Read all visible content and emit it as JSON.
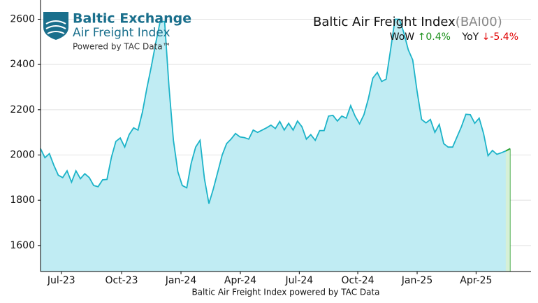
{
  "logo": {
    "brand": "Baltic Exchange",
    "product": "Air Freight Index",
    "powered": "Powered by TAC Data™"
  },
  "chart_data": {
    "type": "area",
    "title": "Baltic Air Freight Index",
    "code": "(BAI00)",
    "wow_label": "WoW",
    "wow_value": "↑0.4%",
    "yoy_label": "YoY",
    "yoy_value": "↓-5.4%",
    "x_label": "Baltic Air Freight Index powered by TAC Data",
    "color": "#1cb3c8",
    "fill": "#c0ecf3",
    "last_segment_color": "#2ca02c",
    "last_fill": "#d6f0d6",
    "grid": true,
    "values": [
      2028,
      1988,
      2006,
      1955,
      1911,
      1900,
      1930,
      1880,
      1930,
      1895,
      1917,
      1900,
      1865,
      1860,
      1890,
      1892,
      1990,
      2060,
      2075,
      2035,
      2090,
      2120,
      2110,
      2190,
      2295,
      2390,
      2495,
      2590,
      2590,
      2300,
      2065,
      1925,
      1865,
      1855,
      1963,
      2035,
      2065,
      1895,
      1785,
      1850,
      1925,
      2000,
      2050,
      2070,
      2095,
      2080,
      2077,
      2070,
      2110,
      2100,
      2110,
      2120,
      2132,
      2117,
      2148,
      2110,
      2140,
      2110,
      2150,
      2125,
      2070,
      2090,
      2065,
      2108,
      2108,
      2172,
      2175,
      2150,
      2172,
      2163,
      2218,
      2172,
      2138,
      2178,
      2250,
      2340,
      2365,
      2325,
      2335,
      2465,
      2600,
      2600,
      2540,
      2465,
      2420,
      2280,
      2157,
      2142,
      2157,
      2100,
      2135,
      2050,
      2035,
      2035,
      2080,
      2125,
      2180,
      2178,
      2140,
      2163,
      2095,
      1997,
      2020,
      2003,
      2010,
      2018,
      2028
    ],
    "xlim": [
      0,
      110.7
    ],
    "xticks": [
      {
        "value": 4.7,
        "label": "Jul-23"
      },
      {
        "value": 18.3,
        "label": "Oct-23"
      },
      {
        "value": 31.7,
        "label": "Jan-24"
      },
      {
        "value": 45.1,
        "label": "Apr-24"
      },
      {
        "value": 58.4,
        "label": "Jul-24"
      },
      {
        "value": 71.6,
        "label": "Oct-24"
      },
      {
        "value": 85.0,
        "label": "Jan-25"
      },
      {
        "value": 98.3,
        "label": "Apr-25"
      }
    ],
    "ylim": [
      1485,
      2685
    ],
    "yticks": [
      1600,
      1800,
      2000,
      2200,
      2400,
      2600
    ]
  }
}
